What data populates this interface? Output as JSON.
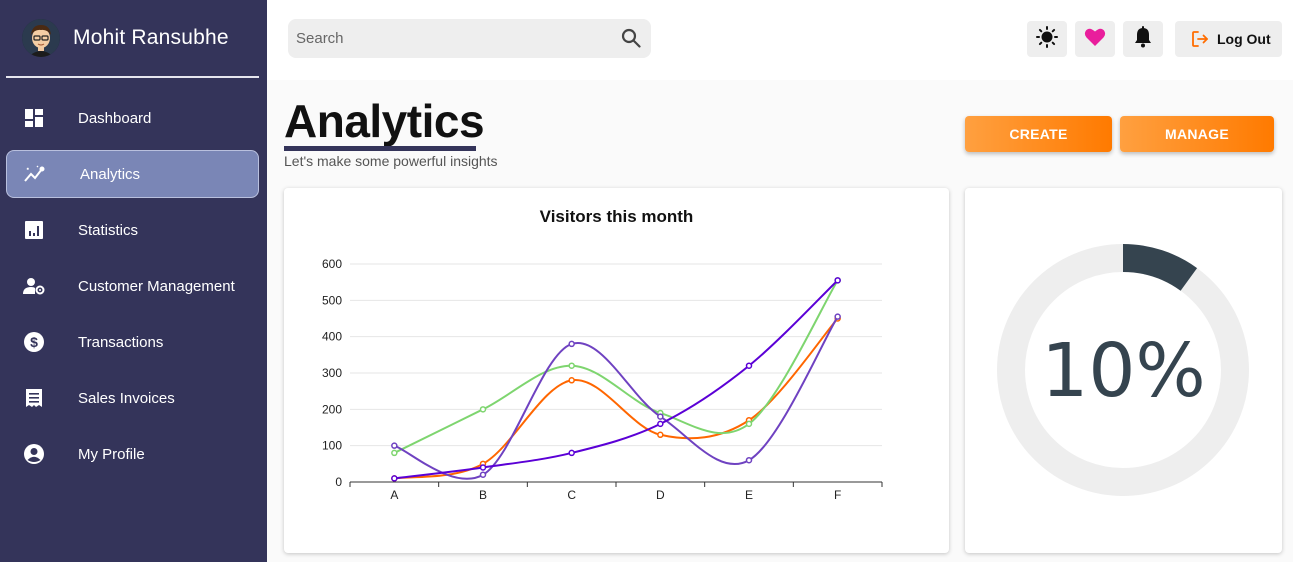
{
  "sidebar": {
    "user_name": "Mohit Ransubhe",
    "items": [
      {
        "label": "Dashboard",
        "icon": "dashboard-icon"
      },
      {
        "label": "Analytics",
        "icon": "analytics-icon",
        "active": true
      },
      {
        "label": "Statistics",
        "icon": "statistics-icon"
      },
      {
        "label": "Customer Management",
        "icon": "customer-management-icon"
      },
      {
        "label": "Transactions",
        "icon": "dollar-icon"
      },
      {
        "label": "Sales Invoices",
        "icon": "receipt-icon"
      },
      {
        "label": "My Profile",
        "icon": "account-circle-icon"
      }
    ]
  },
  "topbar": {
    "search_placeholder": "Search",
    "logout_label": "Log Out",
    "icons": [
      "sun-icon",
      "heart-icon",
      "bell-icon",
      "logout-icon"
    ],
    "heart_color": "#e91e9c"
  },
  "header": {
    "title": "Analytics",
    "subtitle": "Let's make some powerful insights",
    "create_label": "CREATE",
    "manage_label": "MANAGE",
    "accent": "#ff8a1f"
  },
  "chart_data": {
    "type": "line",
    "title": "Visitors this month",
    "categories": [
      "A",
      "B",
      "C",
      "D",
      "E",
      "F"
    ],
    "ylim": [
      0,
      600
    ],
    "yticks": [
      0,
      100,
      200,
      300,
      400,
      500,
      600
    ],
    "grid": true,
    "series": [
      {
        "color": "#ff6600",
        "values": [
          10,
          50,
          280,
          130,
          170,
          450
        ]
      },
      {
        "color": "#7ed56f",
        "values": [
          80,
          200,
          320,
          190,
          160,
          555
        ]
      },
      {
        "color": "#6f42c1",
        "values": [
          100,
          20,
          380,
          180,
          60,
          455
        ]
      },
      {
        "color": "#5b00d6",
        "values": [
          10,
          40,
          80,
          160,
          320,
          555
        ]
      }
    ]
  },
  "gauge": {
    "value": 10,
    "label": "10%",
    "track_color": "#eeeeee",
    "fill_color": "#35444f"
  }
}
